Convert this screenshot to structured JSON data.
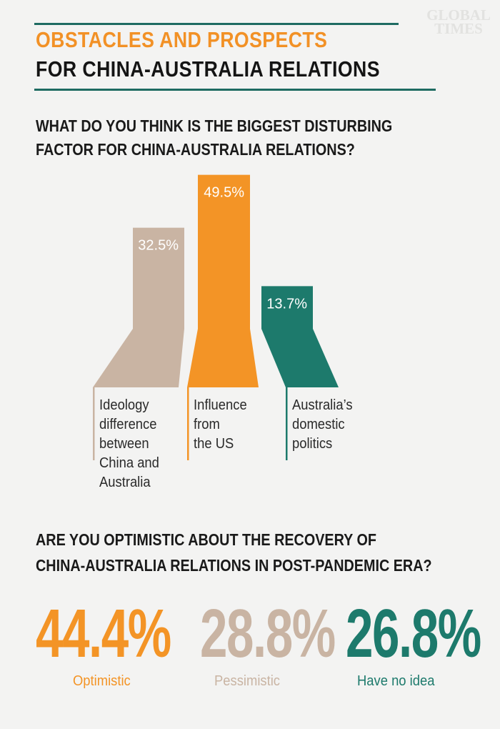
{
  "logo": {
    "line1": "GLOBAL",
    "line2": "TIMES"
  },
  "header": {
    "title_line1": "OBSTACLES AND PROSPECTS",
    "title_line2": "FOR CHINA-AUSTRALIA RELATIONS"
  },
  "question1": {
    "line1": "WHAT DO YOU THINK IS THE BIGGEST DISTURBING",
    "line2": "FACTOR FOR CHINA-AUSTRALIA RELATIONS?"
  },
  "chart_data": {
    "type": "bar",
    "categories": [
      "Ideology difference between China and Australia",
      "Influence from the US",
      "Australia’s domestic politics"
    ],
    "values": [
      32.5,
      49.5,
      13.7
    ],
    "value_labels": [
      "32.5%",
      "49.5%",
      "13.7%"
    ],
    "label_lines": [
      [
        "Ideology",
        "difference",
        "between",
        "China and",
        "Australia"
      ],
      [
        "Influence",
        "from",
        "the US"
      ],
      [
        "Australia’s",
        "domestic",
        "politics"
      ]
    ],
    "colors": [
      "#c9b4a3",
      "#f39426",
      "#1d7a6c"
    ],
    "unit": "%"
  },
  "question2": {
    "line1": "ARE YOU OPTIMISTIC ABOUT THE RECOVERY OF",
    "line2": "CHINA-AUSTRALIA RELATIONS IN POST-PANDEMIC ERA?"
  },
  "results": [
    {
      "value": "44.4%",
      "label": "Optimistic",
      "color": "#f39426"
    },
    {
      "value": "28.8%",
      "label": "Pessimistic",
      "color": "#c9b4a3"
    },
    {
      "value": "26.8%",
      "label": "Have no idea",
      "color": "#1d7a6c"
    }
  ]
}
